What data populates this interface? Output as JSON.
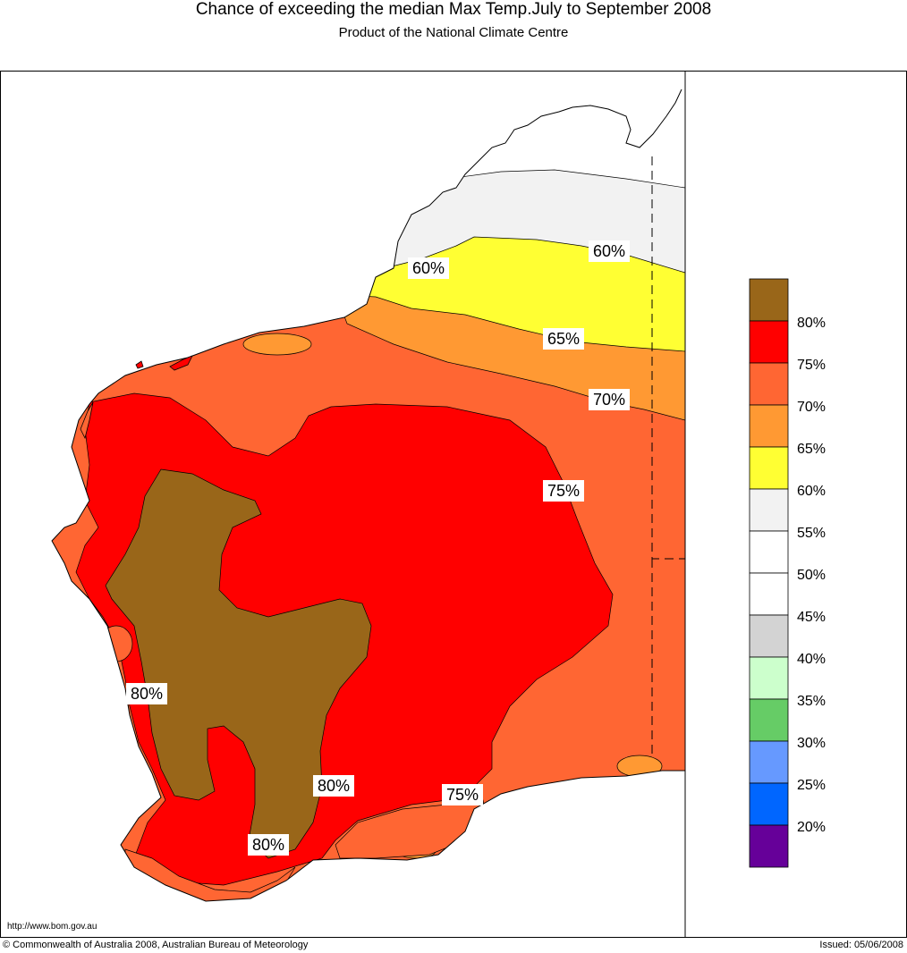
{
  "title": "Chance of exceeding the median Max Temp.July to September 2008",
  "subtitle": "Product of the National Climate Centre",
  "url": "http://www.bom.gov.au",
  "copyright": "© Commonwealth of Australia 2008, Australian Bureau of Meteorology",
  "issued": "Issued: 05/06/2008",
  "legend": [
    {
      "label": "80%",
      "color": "#996619"
    },
    {
      "label": "75%",
      "color": "#ff0000"
    },
    {
      "label": "70%",
      "color": "#ff6633"
    },
    {
      "label": "65%",
      "color": "#ff9933"
    },
    {
      "label": "60%",
      "color": "#ffff33"
    },
    {
      "label": "55%",
      "color": "#f2f2f2"
    },
    {
      "label": "50%",
      "color": "#ffffff"
    },
    {
      "label": "45%",
      "color": "#ffffff"
    },
    {
      "label": "40%",
      "color": "#d3d3d3"
    },
    {
      "label": "35%",
      "color": "#ccffcc"
    },
    {
      "label": "30%",
      "color": "#66cc66"
    },
    {
      "label": "25%",
      "color": "#6699ff"
    },
    {
      "label": "20%",
      "color": "#0066ff"
    },
    {
      "label": "",
      "color": "#660099"
    }
  ],
  "contour_labels": [
    {
      "text": "60%"
    },
    {
      "text": "60%"
    },
    {
      "text": "65%"
    },
    {
      "text": "70%"
    },
    {
      "text": "75%"
    },
    {
      "text": "75%"
    },
    {
      "text": "80%"
    },
    {
      "text": "80%"
    },
    {
      "text": "80%"
    }
  ]
}
